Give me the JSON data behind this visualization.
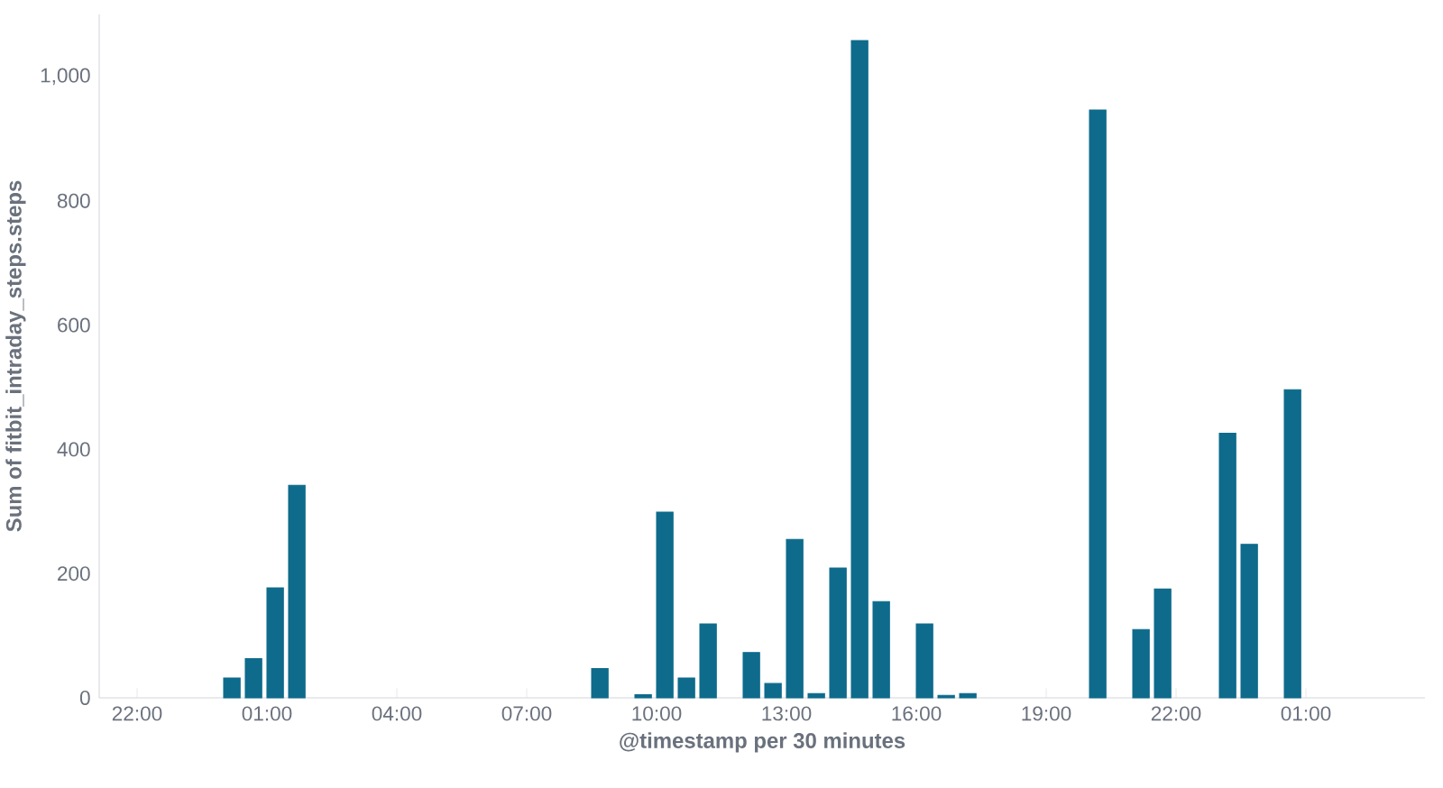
{
  "chart_data": {
    "type": "bar",
    "xlabel": "@timestamp per 30 minutes",
    "ylabel": "Sum of fitbit_intraday_steps.steps",
    "categories": [
      null,
      "22:00",
      null,
      null,
      null,
      null,
      null,
      "01:00",
      null,
      null,
      null,
      null,
      null,
      "04:00",
      null,
      null,
      null,
      null,
      null,
      "07:00",
      null,
      null,
      null,
      null,
      null,
      "10:00",
      null,
      null,
      null,
      null,
      null,
      "13:00",
      null,
      null,
      null,
      null,
      null,
      "16:00",
      null,
      null,
      null,
      null,
      null,
      "19:00",
      null,
      null,
      null,
      null,
      null,
      "22:00",
      null,
      null,
      null,
      null,
      null,
      "01:00",
      null,
      null,
      null,
      null,
      null
    ],
    "values": [
      null,
      null,
      null,
      null,
      null,
      32,
      63,
      177,
      342,
      null,
      null,
      null,
      null,
      null,
      null,
      null,
      null,
      null,
      null,
      null,
      null,
      null,
      47,
      null,
      5,
      299,
      32,
      119,
      null,
      73,
      23,
      255,
      7,
      209,
      1058,
      155,
      null,
      119,
      4,
      7,
      null,
      null,
      null,
      null,
      null,
      946,
      null,
      110,
      175,
      null,
      null,
      426,
      247,
      null,
      496,
      null,
      null,
      null,
      null,
      null,
      null
    ],
    "color": "#0e6b8c",
    "ylim": [
      0,
      1100
    ],
    "yticks": [
      0,
      200,
      400,
      600,
      800,
      {
        "value": 1000,
        "label": "1,000"
      }
    ],
    "grid": false
  }
}
